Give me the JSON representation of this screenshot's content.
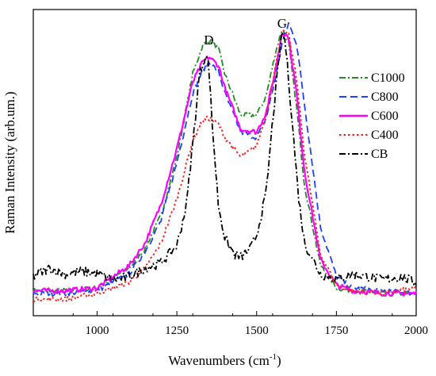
{
  "chart_data": {
    "type": "line",
    "xlabel": "Wavenumbers (cm",
    "xlabel_sup": "-1",
    "xlabel_end": ")",
    "ylabel": "Raman Intensity (arb.um.)",
    "xlim": [
      800,
      2000
    ],
    "ylim": [
      0,
      1.1
    ],
    "x_ticks": [
      1000,
      1250,
      1500,
      1750,
      2000
    ],
    "y_ticks_visible": false,
    "grid": false,
    "legend_position": "right",
    "annotations": [
      {
        "text": "D",
        "x": 1350
      },
      {
        "text": "G",
        "x": 1580
      }
    ],
    "series": [
      {
        "name": "C1000",
        "color": "#228b22",
        "dash": "dashdot",
        "x": [
          800,
          900,
          1000,
          1100,
          1150,
          1200,
          1250,
          1300,
          1330,
          1350,
          1380,
          1400,
          1450,
          1500,
          1530,
          1560,
          1580,
          1600,
          1625,
          1650,
          1700,
          1750,
          1800,
          1900,
          2000
        ],
        "y": [
          0.09,
          0.09,
          0.1,
          0.17,
          0.24,
          0.36,
          0.57,
          0.87,
          0.97,
          0.99,
          0.96,
          0.87,
          0.72,
          0.72,
          0.79,
          0.95,
          1.03,
          0.98,
          0.75,
          0.47,
          0.18,
          0.1,
          0.09,
          0.08,
          0.08
        ]
      },
      {
        "name": "C800",
        "color": "#1f3fff",
        "dash": "dash",
        "x": [
          800,
          900,
          1000,
          1100,
          1150,
          1200,
          1250,
          1300,
          1330,
          1350,
          1380,
          1400,
          1450,
          1500,
          1530,
          1560,
          1580,
          1600,
          1625,
          1650,
          1700,
          1750,
          1800,
          1900,
          2000
        ],
        "y": [
          0.08,
          0.08,
          0.09,
          0.15,
          0.23,
          0.34,
          0.55,
          0.8,
          0.88,
          0.91,
          0.88,
          0.8,
          0.66,
          0.64,
          0.71,
          0.86,
          0.98,
          1.05,
          0.98,
          0.76,
          0.32,
          0.14,
          0.1,
          0.09,
          0.08
        ]
      },
      {
        "name": "C600",
        "color": "#ff00ff",
        "dash": "solid",
        "x": [
          800,
          900,
          1000,
          1100,
          1150,
          1200,
          1250,
          1300,
          1330,
          1350,
          1380,
          1400,
          1450,
          1500,
          1530,
          1560,
          1580,
          1600,
          1625,
          1650,
          1700,
          1750,
          1800,
          1900,
          2000
        ],
        "y": [
          0.09,
          0.09,
          0.1,
          0.18,
          0.26,
          0.4,
          0.6,
          0.84,
          0.91,
          0.93,
          0.9,
          0.82,
          0.67,
          0.66,
          0.73,
          0.89,
          1.02,
          1.0,
          0.8,
          0.52,
          0.2,
          0.11,
          0.09,
          0.08,
          0.08
        ]
      },
      {
        "name": "C400",
        "color": "#ff1a1a",
        "dash": "dot",
        "x": [
          800,
          900,
          1000,
          1100,
          1150,
          1200,
          1250,
          1300,
          1330,
          1350,
          1380,
          1400,
          1450,
          1500,
          1530,
          1560,
          1580,
          1600,
          1625,
          1650,
          1700,
          1750,
          1800,
          1900,
          2000
        ],
        "y": [
          0.06,
          0.06,
          0.08,
          0.12,
          0.17,
          0.26,
          0.42,
          0.63,
          0.7,
          0.71,
          0.69,
          0.64,
          0.57,
          0.61,
          0.72,
          0.9,
          1.02,
          1.01,
          0.85,
          0.58,
          0.22,
          0.11,
          0.09,
          0.08,
          0.1
        ]
      },
      {
        "name": "CB",
        "color": "#000000",
        "dash": "dashdot",
        "x": [
          800,
          850,
          900,
          950,
          1000,
          1050,
          1100,
          1150,
          1200,
          1250,
          1280,
          1300,
          1320,
          1340,
          1350,
          1360,
          1380,
          1400,
          1430,
          1450,
          1480,
          1500,
          1530,
          1550,
          1570,
          1580,
          1590,
          1610,
          1630,
          1650,
          1700,
          1750,
          1800,
          1850,
          1900,
          1950,
          2000
        ],
        "y": [
          0.14,
          0.17,
          0.15,
          0.16,
          0.15,
          0.13,
          0.14,
          0.17,
          0.19,
          0.25,
          0.4,
          0.62,
          0.86,
          0.94,
          0.9,
          0.7,
          0.4,
          0.28,
          0.22,
          0.21,
          0.24,
          0.29,
          0.44,
          0.7,
          0.92,
          1.02,
          0.98,
          0.72,
          0.44,
          0.26,
          0.15,
          0.13,
          0.15,
          0.14,
          0.13,
          0.14,
          0.12
        ]
      }
    ]
  }
}
